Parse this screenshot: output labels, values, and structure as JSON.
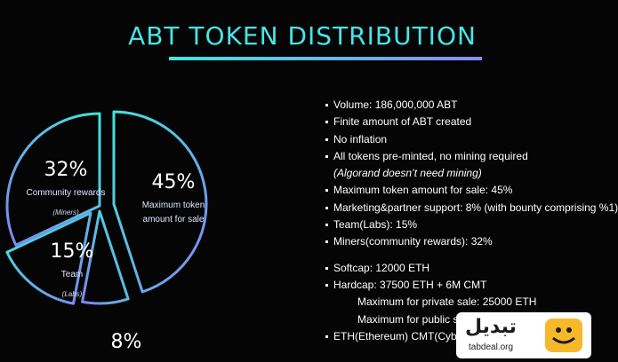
{
  "title": "ABT TOKEN DISTRIBUTION",
  "chart_data": {
    "type": "pie",
    "title": "ABT TOKEN DISTRIBUTION",
    "slices": [
      {
        "percent_label": "45%",
        "label_lines": [
          "Maximum token",
          "amount for sale"
        ],
        "sublabel": "",
        "value": 45,
        "exploded": true
      },
      {
        "percent_label": "8%",
        "label_lines": [],
        "sublabel": "",
        "value": 8,
        "exploded": false
      },
      {
        "percent_label": "15%",
        "label_lines": [
          "Team"
        ],
        "sublabel": "(Labs)",
        "value": 15,
        "exploded": true
      },
      {
        "percent_label": "32%",
        "label_lines": [
          "Community rewards"
        ],
        "sublabel": "(Miners)",
        "value": 32,
        "exploded": false
      }
    ],
    "colors": {
      "stroke_start": "#3fe6d8",
      "stroke_end": "#7f86f0",
      "background": "#050505"
    }
  },
  "bullets": [
    {
      "kind": "bullet",
      "text": "Volume: 186,000,000 ABT"
    },
    {
      "kind": "bullet",
      "text": "Finite amount of ABT created"
    },
    {
      "kind": "bullet",
      "text": "No inflation"
    },
    {
      "kind": "bullet",
      "text": "All tokens pre-minted, no mining required"
    },
    {
      "kind": "note",
      "text": "(Algorand doesn’t need mining)"
    },
    {
      "kind": "bullet",
      "text": "Maximum token amount for sale: 45%"
    },
    {
      "kind": "bullet",
      "text": "Marketing&partner support: 8% (with bounty comprising %1)"
    },
    {
      "kind": "bullet",
      "text": "Team(Labs): 15%"
    },
    {
      "kind": "bullet",
      "text": "Miners(community rewards): 32%"
    },
    {
      "kind": "gap",
      "text": ""
    },
    {
      "kind": "bullet",
      "text": "Softcap: 12000 ETH"
    },
    {
      "kind": "bullet",
      "text": "Hardcap: 37500 ETH + 6M CMT"
    },
    {
      "kind": "indent",
      "text": "Maximum for private sale: 25000 ETH"
    },
    {
      "kind": "indent",
      "text": "Maximum for public sale"
    },
    {
      "kind": "bullet",
      "text": "ETH(Ethereum) CMT(CyberMiles)"
    }
  ],
  "watermark": {
    "text": "تبدیل",
    "url": "tabdeal.org",
    "logo_icon": "tabdeal-logo-icon"
  }
}
